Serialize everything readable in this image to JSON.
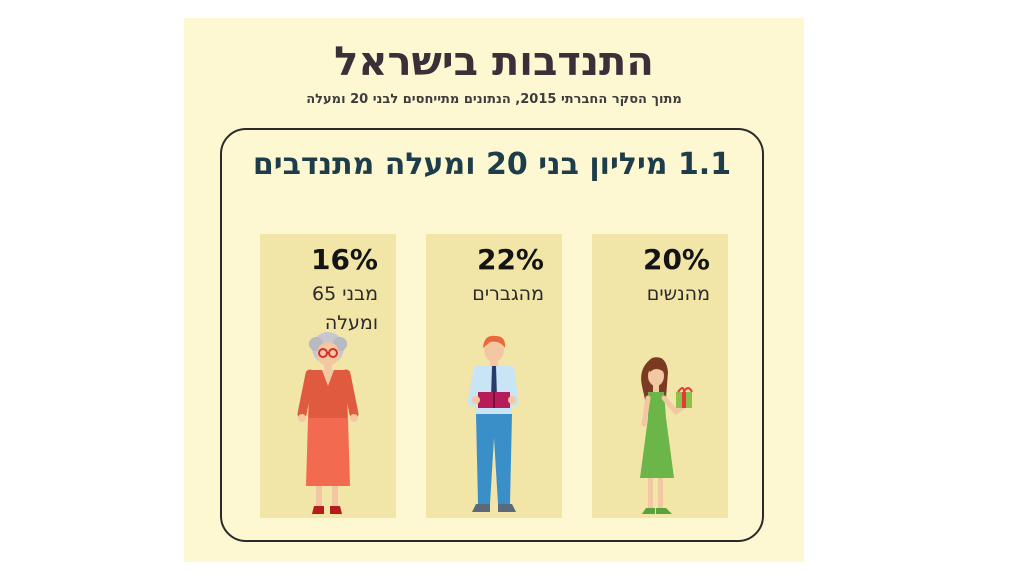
{
  "title": "התנדבות בישראל",
  "subtitle": "מתוך הסקר החברתי 2015, הנתונים מתייחסים לבני 20 ומעלה",
  "headline": "1.1 מיליון בני 20 ומעלה  מתנדבים",
  "colors": {
    "background": "#fdf8d1",
    "card": "#f2e5a8",
    "headline": "#1e3d4a",
    "title": "#3a3038"
  },
  "chart_data": {
    "type": "bar",
    "categories": [
      "מהנשים",
      "מהגברים",
      "מבני 65 ומעלה"
    ],
    "values": [
      20,
      22,
      16
    ],
    "value_labels": [
      "20%",
      "22%",
      "16%"
    ],
    "unit": "%",
    "title": "התנדבות בישראל",
    "icons": [
      "woman-icon",
      "man-icon",
      "elderly-woman-icon"
    ]
  }
}
